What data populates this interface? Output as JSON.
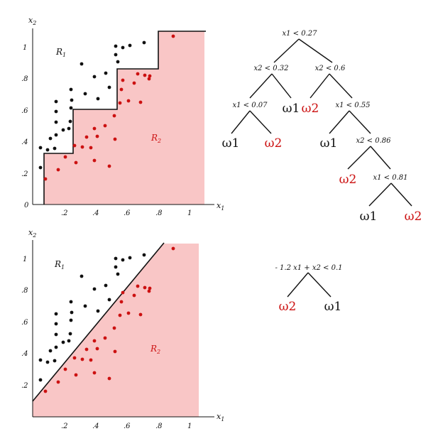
{
  "colors": {
    "class1": "#111111",
    "class2": "#cc1111",
    "region2_fill": "#f9c6c6"
  },
  "top_plot": {
    "xlabel": "x",
    "xlabel_sub": "1",
    "ylabel": "x",
    "ylabel_sub": "2",
    "x_ticks": [
      ".2",
      ".4",
      ".6",
      ".8",
      "1"
    ],
    "y_ticks": [
      "0",
      ".2",
      ".4",
      ".6",
      ".8",
      "1"
    ],
    "region1": {
      "letter": "R",
      "sub": "1"
    },
    "region2": {
      "letter": "R",
      "sub": "2"
    }
  },
  "bottom_plot": {
    "xlabel": "x",
    "xlabel_sub": "1",
    "ylabel": "x",
    "ylabel_sub": "2",
    "x_ticks": [
      ".2",
      ".4",
      ".6",
      ".8",
      "1"
    ],
    "y_ticks": [
      ".2",
      ".4",
      ".6",
      ".8",
      "1"
    ],
    "region1": {
      "letter": "R",
      "sub": "1"
    },
    "region2": {
      "letter": "R",
      "sub": "2"
    }
  },
  "top_tree": {
    "nodes": [
      {
        "id": "n0",
        "condition": "x1 < 0.27"
      },
      {
        "id": "n1",
        "condition": "x2 < 0.32"
      },
      {
        "id": "n2",
        "condition": "x2 < 0.6"
      },
      {
        "id": "n3",
        "condition": "x1 < 0.07"
      },
      {
        "id": "n4",
        "condition": "x1 < 0.55"
      },
      {
        "id": "n5",
        "condition": "x2 < 0.86"
      },
      {
        "id": "n6",
        "condition": "x1 < 0.81"
      }
    ],
    "leaves": [
      {
        "id": "l_a",
        "label": "ω1",
        "class": 1
      },
      {
        "id": "l_b",
        "label": "ω2",
        "class": 2
      },
      {
        "id": "l_c",
        "label": "ω1",
        "class": 1
      },
      {
        "id": "l_d",
        "label": "ω2",
        "class": 2
      },
      {
        "id": "l_e",
        "label": "ω1",
        "class": 1
      },
      {
        "id": "l_f",
        "label": "ω2",
        "class": 2
      },
      {
        "id": "l_g",
        "label": "ω1",
        "class": 1
      },
      {
        "id": "l_h",
        "label": "ω2",
        "class": 2
      }
    ]
  },
  "bottom_tree": {
    "condition": "- 1.2 x1 + x2 < 0.1",
    "leaves": [
      {
        "id": "bl_a",
        "label": "ω2",
        "class": 2
      },
      {
        "id": "bl_b",
        "label": "ω1",
        "class": 1
      }
    ]
  }
}
